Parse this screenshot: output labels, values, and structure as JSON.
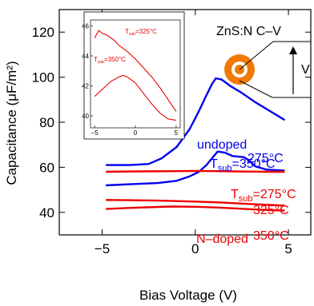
{
  "chart_data": [
    {
      "type": "line",
      "title": "",
      "xlabel": "Bias Voltage (V)",
      "ylabel": "Capacitance (μF/m²)",
      "xlim": [
        -7.3,
        6.2
      ],
      "ylim": [
        30,
        130
      ],
      "xticks": [
        -5,
        0,
        5
      ],
      "xtick_labels": [
        "−5",
        "0",
        "5"
      ],
      "yticks": [
        40,
        60,
        80,
        100,
        120
      ],
      "ytick_labels": [
        "40",
        "60",
        "80",
        "100",
        "120"
      ],
      "grid": false,
      "series": [
        {
          "color": "#0000ee",
          "x": [
            -4.8,
            -3.5,
            -2.5,
            -1.8,
            -1.0,
            -0.3,
            0.2,
            0.6,
            0.9,
            1.1,
            1.4,
            1.9,
            2.5,
            3.2,
            4.0,
            4.8
          ],
          "y": [
            61,
            61,
            61.5,
            64,
            69,
            77,
            85,
            92,
            97,
            99.5,
            99,
            96,
            93,
            89,
            85,
            81
          ]
        },
        {
          "color": "#0000ee",
          "x": [
            -4.8,
            -3.5,
            -2.0,
            -1.0,
            -0.3,
            0.2,
            0.6,
            0.9,
            1.2,
            1.6,
            2.0,
            2.6,
            2.9,
            3.2,
            3.8,
            4.8
          ],
          "y": [
            52,
            52.5,
            53,
            54,
            56,
            58,
            61,
            64,
            67,
            66.5,
            65,
            64.5,
            63,
            60.5,
            59,
            58.5
          ]
        },
        {
          "color": "#ee0000",
          "x": [
            -4.8,
            -3,
            -1,
            0,
            1,
            2,
            3,
            4,
            4.8
          ],
          "y": [
            58,
            58.2,
            58.3,
            58.4,
            58.3,
            58.2,
            58.1,
            58,
            58
          ]
        },
        {
          "color": "#ee0000",
          "x": [
            -4.8,
            -3.5,
            -2,
            -1,
            0,
            1,
            2,
            3,
            4,
            4.8
          ],
          "y": [
            45.5,
            45.4,
            45.2,
            45,
            44.8,
            44.5,
            44.1,
            43.7,
            43.3,
            43
          ]
        },
        {
          "color": "#ee0000",
          "x": [
            -4.8,
            -3.5,
            -2,
            -1.2,
            0,
            1,
            2,
            3,
            4,
            4.8
          ],
          "y": [
            41.5,
            42,
            42.4,
            42.6,
            42.5,
            42.2,
            41.8,
            41.4,
            41,
            40.8
          ]
        }
      ],
      "annotations": {
        "undoped": "undoped",
        "t_sub_350": "=350°C",
        "t_275_blue": "275°C",
        "t_sub_275": "=275°C",
        "t_325": "325°C",
        "n_doped": "N–doped",
        "t_350_red": "350°C",
        "t_prefix": "T",
        "sub": "sub"
      },
      "diagram_label": "ZnS:N C–V",
      "diagram_v": "V"
    },
    {
      "type": "line",
      "title": "",
      "xlim": [
        -5.5,
        5.5
      ],
      "ylim": [
        39.2,
        46.4
      ],
      "xticks": [
        -5,
        0,
        5
      ],
      "xtick_labels": [
        "−5",
        "0",
        "5"
      ],
      "yticks": [
        40,
        42,
        44,
        46
      ],
      "ytick_labels": [
        "40",
        "42",
        "44",
        "46"
      ],
      "series": [
        {
          "color": "#ee0000",
          "x": [
            -5,
            -4.5,
            -4,
            -3.5,
            -3,
            -2.5,
            -2,
            -1.5,
            -1,
            0,
            1,
            2,
            3,
            4,
            5
          ],
          "y": [
            45.2,
            45.7,
            45.5,
            45.4,
            45.2,
            45.0,
            44.7,
            44.5,
            44.3,
            43.8,
            43.2,
            42.6,
            41.9,
            41.1,
            40.3
          ]
        },
        {
          "color": "#ee0000",
          "x": [
            -5,
            -4,
            -3,
            -2,
            -1.5,
            -1,
            0,
            1,
            2,
            3,
            4,
            5
          ],
          "y": [
            41.3,
            41.8,
            42.3,
            42.6,
            42.7,
            42.6,
            42.2,
            41.5,
            40.8,
            40.2,
            39.8,
            39.7
          ]
        }
      ],
      "annotations": {
        "t_325": "=325°C",
        "t_350": "=350°C",
        "t_prefix": "T",
        "sub": "sub"
      }
    }
  ],
  "colors": {
    "blue": "#0000ee",
    "red": "#ee0000",
    "ring": "#f07a00"
  }
}
